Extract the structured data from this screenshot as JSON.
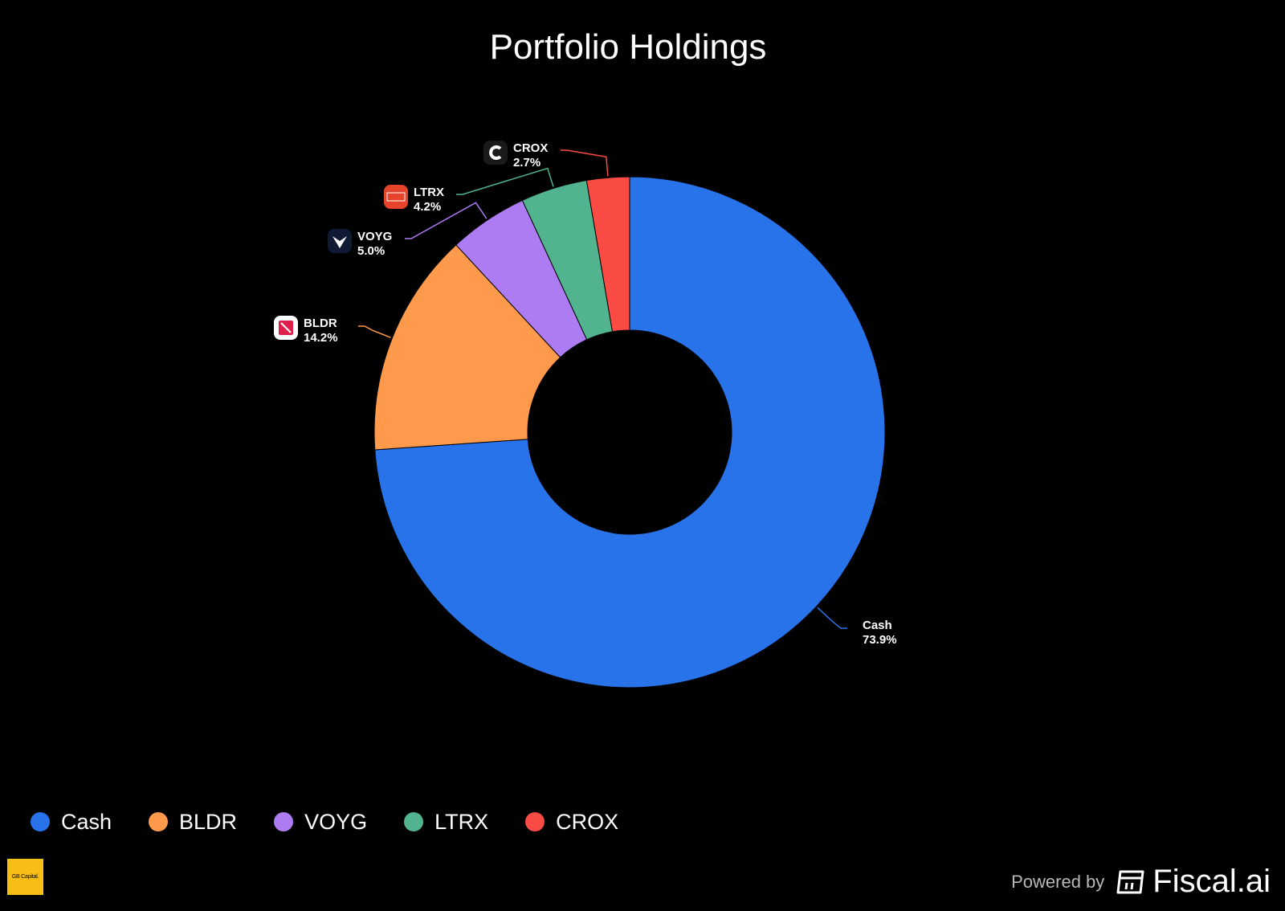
{
  "header": {
    "title": "Portfolio Holdings"
  },
  "chart_data": {
    "type": "pie",
    "variant": "donut",
    "title": "Portfolio Holdings",
    "categories": [
      "Cash",
      "BLDR",
      "VOYG",
      "LTRX",
      "CROX"
    ],
    "values": [
      73.9,
      14.2,
      5.0,
      4.2,
      2.7
    ],
    "labels": [
      "73.9%",
      "14.2%",
      "5.0%",
      "4.2%",
      "2.7%"
    ],
    "colors": [
      "#2872ea",
      "#ff9a4d",
      "#ad7cf2",
      "#52b38f",
      "#fb4b45"
    ],
    "legend_position": "bottom-left"
  },
  "footer": {
    "brand_logo_text": "GB Capital.",
    "powered_by": "Powered by",
    "provider": "Fiscal.ai"
  }
}
